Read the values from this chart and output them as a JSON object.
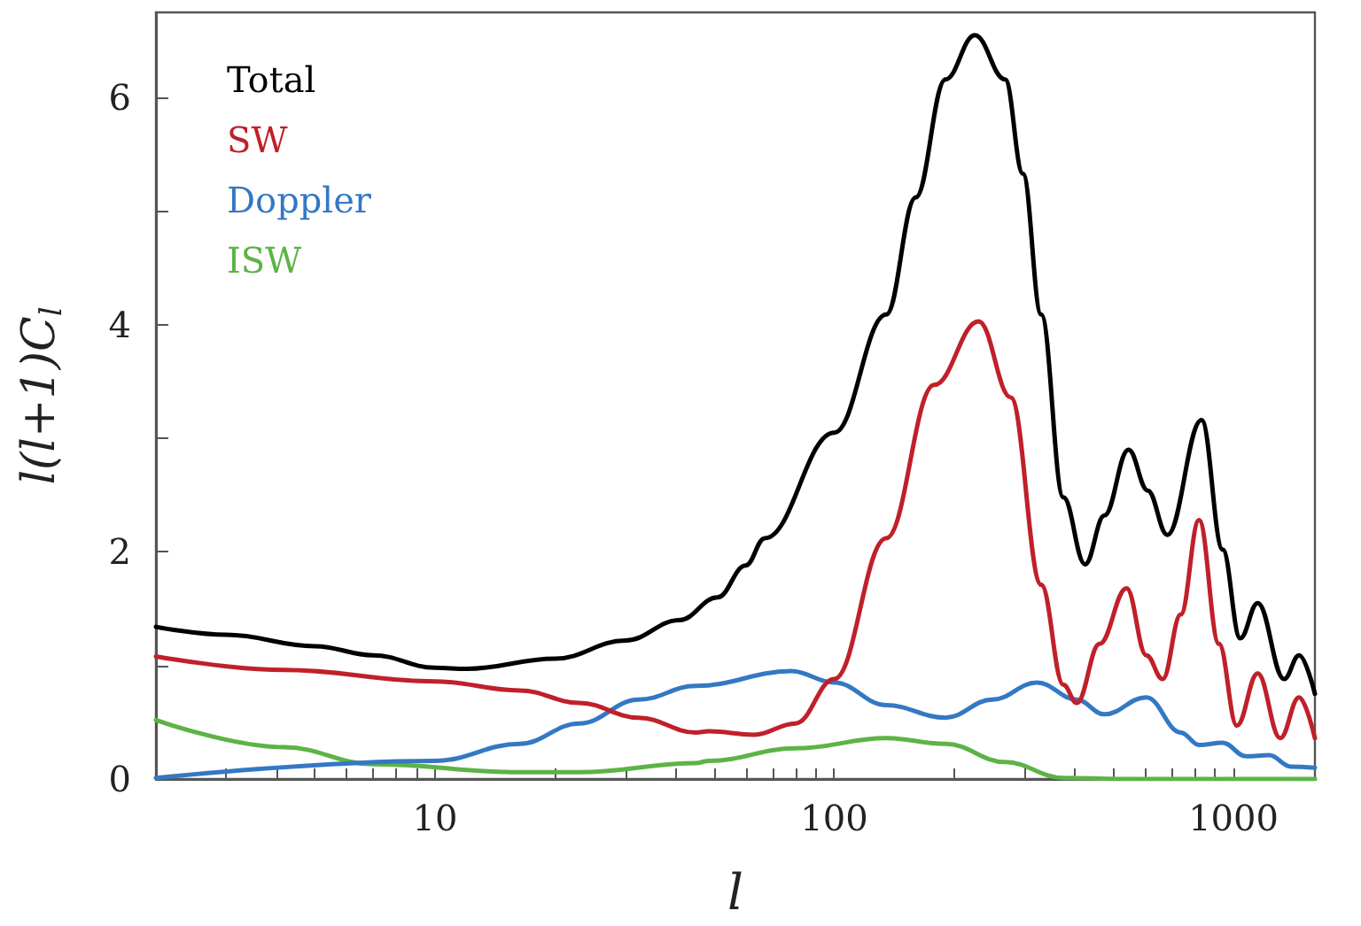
{
  "chart_data": {
    "type": "line",
    "xlabel": "l",
    "ylabel": "l(l+1)C$_{l}$",
    "x": [
      2,
      3,
      4.2,
      5,
      7,
      10,
      12,
      16.3,
      20,
      23,
      30,
      32.4,
      41,
      45,
      48.5,
      51,
      60,
      63,
      67,
      78,
      80,
      100,
      135,
      160,
      178,
      190,
      225,
      230,
      249,
      268,
      277,
      297,
      322,
      330,
      375,
      405,
      425,
      462,
      475,
      523,
      540,
      546,
      605,
      610,
      665,
      683,
      738,
      820,
      832,
      920,
      940,
      1020,
      1040,
      1075,
      1150,
      1230,
      1310,
      1340,
      1390,
      1460,
      1600
    ],
    "series": [
      {
        "name": "Total",
        "color": "#000000",
        "values": [
          1.34,
          1.27,
          null,
          1.17,
          1.09,
          0.98,
          0.97,
          null,
          1.06,
          null,
          1.22,
          null,
          1.4,
          null,
          null,
          1.6,
          1.88,
          null,
          2.12,
          null,
          null,
          3.05,
          4.09,
          5.12,
          null,
          6.16,
          6.55,
          null,
          null,
          6.16,
          null,
          5.33,
          null,
          4.09,
          2.48,
          null,
          1.89,
          null,
          2.32,
          null,
          null,
          2.9,
          null,
          2.54,
          null,
          2.15,
          null,
          null,
          3.16,
          null,
          2.02,
          null,
          1.24,
          null,
          1.55,
          null,
          null,
          0.88,
          null,
          1.09,
          0.75
        ]
      },
      {
        "name": "SW",
        "color": "#c0202a",
        "values": [
          1.08,
          null,
          0.96,
          null,
          null,
          0.86,
          null,
          0.78,
          null,
          0.67,
          null,
          0.54,
          null,
          0.41,
          0.42,
          null,
          null,
          0.39,
          null,
          null,
          0.49,
          0.88,
          2.12,
          null,
          3.47,
          null,
          null,
          4.03,
          null,
          null,
          3.36,
          null,
          null,
          1.71,
          0.83,
          0.67,
          null,
          1.19,
          null,
          null,
          1.68,
          null,
          1.09,
          null,
          0.88,
          null,
          1.45,
          2.28,
          null,
          1.19,
          null,
          0.47,
          null,
          null,
          0.93,
          null,
          0.36,
          null,
          null,
          0.72,
          0.36
        ]
      },
      {
        "name": "Doppler",
        "color": "#3478c4",
        "values": [
          0.01,
          null,
          null,
          null,
          null,
          0.16,
          null,
          0.31,
          null,
          0.49,
          null,
          0.7,
          null,
          0.82,
          null,
          null,
          null,
          null,
          null,
          0.95,
          null,
          0.85,
          0.65,
          null,
          null,
          0.54,
          null,
          null,
          0.7,
          null,
          null,
          null,
          0.85,
          null,
          null,
          0.7,
          null,
          null,
          0.57,
          null,
          null,
          null,
          0.72,
          null,
          null,
          null,
          0.41,
          0.3,
          null,
          null,
          0.32,
          null,
          null,
          0.2,
          null,
          0.21,
          null,
          null,
          0.11,
          null,
          0.1
        ]
      },
      {
        "name": "ISW",
        "color": "#5db346",
        "values": [
          0.52,
          null,
          0.28,
          null,
          0.13,
          null,
          null,
          0.06,
          null,
          0.06,
          null,
          null,
          null,
          0.14,
          0.16,
          null,
          null,
          null,
          null,
          null,
          0.27,
          null,
          0.36,
          null,
          null,
          0.31,
          null,
          null,
          null,
          0.15,
          null,
          null,
          null,
          null,
          0.01,
          null,
          null,
          null,
          null,
          0.0,
          null,
          null,
          null,
          null,
          null,
          null,
          null,
          null,
          null,
          null,
          null,
          null,
          null,
          null,
          null,
          null,
          null,
          null,
          null,
          null,
          0.0
        ]
      }
    ],
    "log": "x",
    "xlim": [
      2,
      1600
    ],
    "xticks": [
      {
        "value": 3,
        "label": null
      },
      {
        "value": 4,
        "label": null
      },
      {
        "value": 5,
        "label": null
      },
      {
        "value": 6,
        "label": null
      },
      {
        "value": 7,
        "label": null
      },
      {
        "value": 8,
        "label": null
      },
      {
        "value": 9,
        "label": null
      },
      10,
      {
        "value": 20,
        "label": null
      },
      {
        "value": 30,
        "label": null
      },
      {
        "value": 40,
        "label": null
      },
      {
        "value": 50,
        "label": null
      },
      {
        "value": 60,
        "label": null
      },
      {
        "value": 70,
        "label": null
      },
      {
        "value": 80,
        "label": null
      },
      {
        "value": 90,
        "label": null
      },
      100,
      {
        "value": 200,
        "label": null
      },
      {
        "value": 300,
        "label": null
      },
      {
        "value": 400,
        "label": null
      },
      {
        "value": 500,
        "label": null
      },
      {
        "value": 600,
        "label": null
      },
      {
        "value": 700,
        "label": null
      },
      {
        "value": 800,
        "label": null
      },
      {
        "value": 900,
        "label": null
      },
      1000
    ],
    "ylim": [
      0,
      6.75
    ],
    "yticks": [
      0,
      {
        "value": 1,
        "label": null
      },
      2,
      {
        "value": 3,
        "label": null
      },
      4,
      {
        "value": 5,
        "label": null
      },
      6
    ],
    "legend": "top left",
    "grid": false,
    "marker": "none",
    "line_style": "solid"
  }
}
